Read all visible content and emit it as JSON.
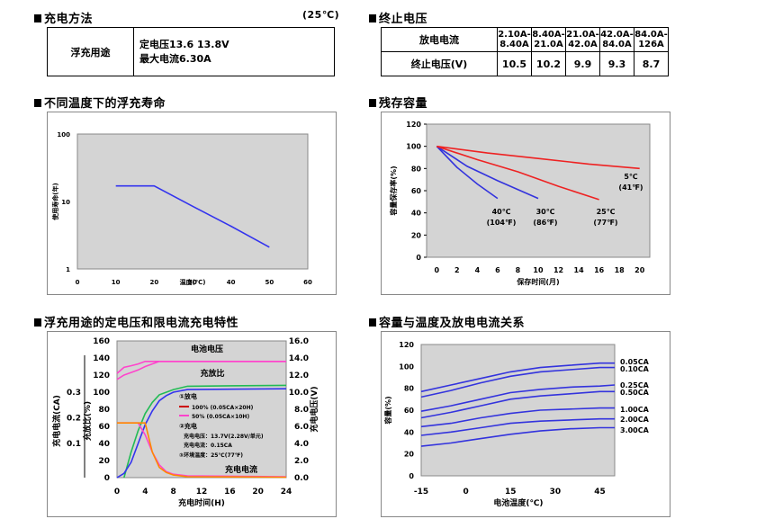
{
  "sections": {
    "charging_method": "充电方法",
    "charging_temp": "(25℃)",
    "end_voltage": "终止电压",
    "float_life": "不同温度下的浮充寿命",
    "residual_capacity": "残存容量",
    "float_charge_char": "浮充用途的定电压和限电流充电特性",
    "capacity_temp": "容量与温度及放电电流关系"
  },
  "charge_table": {
    "label": "浮充用途",
    "line1": "定电压13.6 13.8V",
    "line2": "最大电流6.30A"
  },
  "end_voltage_table": {
    "row1_label": "放电电流",
    "row2_label": "终止电压(V)",
    "columns": [
      {
        "top": "2.10A-",
        "bottom": "8.40A",
        "voltage": "10.5"
      },
      {
        "top": "8.40A-",
        "bottom": "21.0A",
        "voltage": "10.2"
      },
      {
        "top": "21.0A-",
        "bottom": "42.0A",
        "voltage": "9.9"
      },
      {
        "top": "42.0A-",
        "bottom": "84.0A",
        "voltage": "9.3"
      },
      {
        "top": "84.0A-",
        "bottom": "126A",
        "voltage": "8.7"
      }
    ]
  },
  "chart_data": [
    {
      "id": "float_life",
      "type": "line",
      "title": "不同温度下的浮充寿命",
      "xlabel": "温度(℃)",
      "ylabel": "使用寿命(年)",
      "x_ticks": [
        "0",
        "10",
        "20",
        "30",
        "40",
        "50",
        "60"
      ],
      "y_ticks": [
        "1",
        "10",
        "100"
      ],
      "xlim": [
        0,
        60
      ],
      "ylim_log": [
        1,
        100
      ],
      "series": [
        {
          "name": "寿命",
          "color": "#3333ee",
          "x": [
            10,
            20,
            30,
            40,
            50
          ],
          "y": [
            17,
            17,
            8.5,
            4.3,
            2.1
          ]
        }
      ]
    },
    {
      "id": "residual",
      "type": "line",
      "title": "残存容量",
      "xlabel": "保存时间(月)",
      "ylabel": "容量保存率(%)",
      "x_ticks": [
        "0",
        "2",
        "4",
        "6",
        "8",
        "10",
        "12",
        "14",
        "16",
        "18",
        "20"
      ],
      "y_ticks": [
        "0",
        "20",
        "40",
        "60",
        "80",
        "100",
        "120"
      ],
      "xlim": [
        -1,
        21
      ],
      "ylim": [
        0,
        120
      ],
      "series": [
        {
          "name": "40℃ (104℉)",
          "color": "#3333dd",
          "x": [
            0,
            2,
            4,
            6
          ],
          "y": [
            100,
            81,
            66,
            53
          ]
        },
        {
          "name": "30℃ (86℉)",
          "color": "#3333dd",
          "x": [
            0,
            3,
            6,
            10
          ],
          "y": [
            100,
            82,
            69,
            53
          ]
        },
        {
          "name": "25℃ (77℉)",
          "color": "#ee2222",
          "x": [
            0,
            4,
            8,
            12,
            16
          ],
          "y": [
            100,
            88,
            77,
            64,
            52
          ]
        },
        {
          "name": "5℃ (41℉)",
          "color": "#ee2222",
          "x": [
            0,
            5,
            10,
            15,
            20
          ],
          "y": [
            100,
            94,
            89,
            84,
            80
          ]
        }
      ],
      "annotations": [
        {
          "line1": "5℃",
          "line2": "(41℉)"
        },
        {
          "line1": "25℃",
          "line2": "(77℉)"
        },
        {
          "line1": "30℃",
          "line2": "(86℉)"
        },
        {
          "line1": "40℃",
          "line2": "(104℉)"
        }
      ]
    },
    {
      "id": "float_charge",
      "type": "line",
      "title": "浮充用途的定电压和限电流充电特性",
      "xlabel": "充电时间(H)",
      "ylabel_left1": "充电电流(CA)",
      "ylabel_left2": "充放比(%)",
      "ylabel_right": "充电电压(V)",
      "x_ticks": [
        "0",
        "2",
        "4",
        "6",
        "8",
        "10",
        "12",
        "14",
        "16",
        "18",
        "20",
        "22",
        "24"
      ],
      "x_labels_shown": [
        "0",
        "4",
        "8",
        "12",
        "16",
        "20",
        "24"
      ],
      "left_ticks": [
        "0",
        "20",
        "40",
        "60",
        "80",
        "100",
        "120",
        "140",
        "160"
      ],
      "ca_ticks": [
        "0.1",
        "0.2",
        "0.3"
      ],
      "right_ticks": [
        "0.0",
        "2.0",
        "4.0",
        "6.0",
        "8.0",
        "10.0",
        "12.0",
        "14.0",
        "16.0"
      ],
      "xlim": [
        0,
        24
      ],
      "ylim": [
        0,
        160
      ],
      "labels": {
        "voltage": "电池电压",
        "ratio": "充放比",
        "current": "充电电流",
        "legend_discharge": "①放电",
        "legend_100": "100% (0.05CA×20H)",
        "legend_50": "50% (0.05CA×10H)",
        "legend_charge": "②充电",
        "legend_cv": "充电电压：13.7V(2.28V/单元)",
        "legend_cc": "充电电流：0.15CA",
        "legend_temp": "③环境温度：25℃(77℉)"
      },
      "series": [
        {
          "name": "电池电压",
          "color": "#ff44cc",
          "x": [
            0,
            1,
            2,
            3,
            4,
            5,
            6,
            24
          ],
          "y": [
            115,
            120,
            123,
            126,
            130,
            133,
            136,
            136
          ]
        },
        {
          "name": "电池电压2",
          "color": "#ff44cc",
          "x": [
            0,
            1,
            2,
            3,
            4,
            24
          ],
          "y": [
            122,
            129,
            131,
            133,
            136,
            136
          ]
        },
        {
          "name": "充放比1",
          "color": "#22bb55",
          "x": [
            1,
            2,
            3,
            4,
            5,
            6,
            8,
            10,
            24
          ],
          "y": [
            0,
            30,
            55,
            75,
            88,
            97,
            103,
            107,
            108
          ]
        },
        {
          "name": "充放比2",
          "color": "#3333ee",
          "x": [
            0,
            1,
            2,
            3,
            4,
            5,
            6,
            7,
            8,
            10,
            24
          ],
          "y": [
            0,
            5,
            18,
            40,
            62,
            78,
            90,
            96,
            100,
            103,
            104
          ]
        },
        {
          "name": "充电电流1",
          "color": "#ff44cc",
          "x": [
            0,
            3,
            4,
            5,
            6,
            7,
            8,
            10,
            24
          ],
          "y": [
            64,
            64,
            50,
            30,
            15,
            7,
            4,
            2,
            1
          ]
        },
        {
          "name": "充电电流2",
          "color": "#ff8800",
          "x": [
            0,
            4,
            5,
            6,
            7,
            8,
            10,
            24
          ],
          "y": [
            64,
            64,
            30,
            12,
            6,
            3,
            1,
            0.5
          ]
        }
      ]
    },
    {
      "id": "capacity_temp",
      "type": "line",
      "title": "容量与温度及放电电流关系",
      "xlabel": "电池温度(℃)",
      "ylabel": "容量(%)",
      "x_ticks": [
        "-15",
        "0",
        "15",
        "30",
        "45"
      ],
      "y_ticks": [
        "0",
        "20",
        "40",
        "60",
        "80",
        "100",
        "120"
      ],
      "xlim": [
        -15,
        50
      ],
      "ylim": [
        0,
        120
      ],
      "series": [
        {
          "name": "0.05CA",
          "color": "#3333dd",
          "x": [
            -15,
            -5,
            5,
            15,
            25,
            35,
            45,
            50
          ],
          "y": [
            77,
            83,
            89,
            95,
            99,
            101,
            103,
            103
          ]
        },
        {
          "name": "0.10CA",
          "color": "#3333dd",
          "x": [
            -15,
            -5,
            5,
            15,
            25,
            35,
            45,
            50
          ],
          "y": [
            72,
            78,
            85,
            91,
            95,
            97,
            99,
            99
          ]
        },
        {
          "name": "0.25CA",
          "color": "#3333dd",
          "x": [
            -15,
            -5,
            5,
            15,
            25,
            35,
            45,
            50
          ],
          "y": [
            59,
            64,
            70,
            76,
            79,
            81,
            82,
            83
          ]
        },
        {
          "name": "0.50CA",
          "color": "#3333dd",
          "x": [
            -15,
            -5,
            5,
            15,
            25,
            35,
            45,
            50
          ],
          "y": [
            53,
            58,
            64,
            70,
            73,
            75,
            77,
            77
          ]
        },
        {
          "name": "1.00CA",
          "color": "#3333dd",
          "x": [
            -15,
            -5,
            5,
            15,
            25,
            35,
            45,
            50
          ],
          "y": [
            45,
            48,
            53,
            57,
            60,
            61,
            62,
            62
          ]
        },
        {
          "name": "2.00CA",
          "color": "#3333dd",
          "x": [
            -15,
            -5,
            5,
            15,
            25,
            35,
            45,
            50
          ],
          "y": [
            37,
            40,
            44,
            48,
            50,
            51,
            52,
            52
          ]
        },
        {
          "name": "3.00CA",
          "color": "#3333dd",
          "x": [
            -15,
            -5,
            5,
            15,
            25,
            35,
            45,
            50
          ],
          "y": [
            27,
            30,
            34,
            38,
            41,
            43,
            44,
            44
          ]
        }
      ]
    }
  ]
}
